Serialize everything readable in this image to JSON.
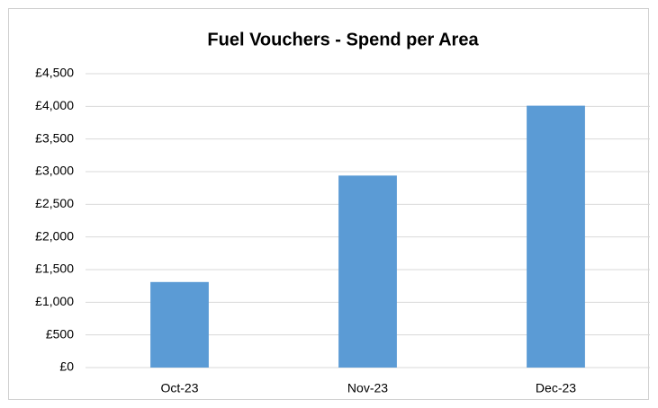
{
  "chart_data": {
    "type": "bar",
    "title": "Fuel Vouchers - Spend per Area",
    "categories": [
      "Oct-23",
      "Nov-23",
      "Dec-23"
    ],
    "values": [
      1310,
      2940,
      4010
    ],
    "color": "#5b9bd5",
    "ylim": [
      0,
      4500
    ],
    "yticks": [
      {
        "value": 0,
        "label": "£0"
      },
      {
        "value": 500,
        "label": "£500"
      },
      {
        "value": 1000,
        "label": "£1,000"
      },
      {
        "value": 1500,
        "label": "£1,500"
      },
      {
        "value": 2000,
        "label": "£2,000"
      },
      {
        "value": 2500,
        "label": "£2,500"
      },
      {
        "value": 3000,
        "label": "£3,000"
      },
      {
        "value": 3500,
        "label": "£3,500"
      },
      {
        "value": 4000,
        "label": "£4,000"
      },
      {
        "value": 4500,
        "label": "£4,500"
      }
    ],
    "grid": true
  }
}
